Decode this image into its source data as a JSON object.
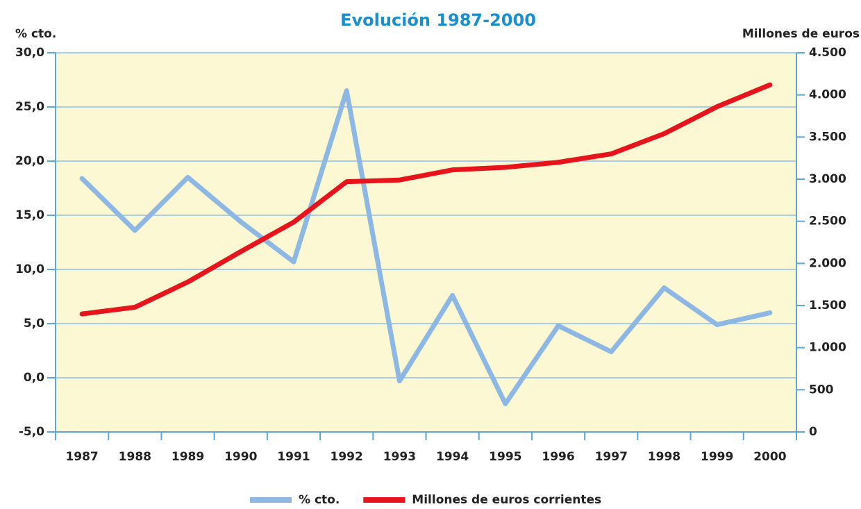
{
  "chart_data": {
    "type": "line",
    "title": "Evolución 1987-2000",
    "y_label": "% cto.",
    "y2_label": "Millones de euros",
    "categories": [
      "1987",
      "1988",
      "1989",
      "1990",
      "1991",
      "1992",
      "1993",
      "1994",
      "1995",
      "1996",
      "1997",
      "1998",
      "1999",
      "2000"
    ],
    "series": [
      {
        "name": "% cto.",
        "color": "#8cb8e3",
        "axis": "y",
        "values": [
          18.4,
          13.6,
          18.5,
          14.4,
          10.7,
          26.5,
          -0.3,
          7.6,
          -2.4,
          4.8,
          2.4,
          8.3,
          4.9,
          6.0
        ]
      },
      {
        "name": "Millones de euros corrientes",
        "color": "#e8141c",
        "axis": "y2",
        "values": [
          1400,
          1480,
          1780,
          2140,
          2490,
          2970,
          2990,
          3110,
          3140,
          3200,
          3300,
          3540,
          3860,
          4120
        ]
      }
    ],
    "ylim": [
      -5,
      30
    ],
    "yticks": [
      {
        "value": -5,
        "label": "-5,0"
      },
      {
        "value": 0,
        "label": "0,0"
      },
      {
        "value": 5,
        "label": "5,0"
      },
      {
        "value": 10,
        "label": "10,0"
      },
      {
        "value": 15,
        "label": "15,0"
      },
      {
        "value": 20,
        "label": "20,0"
      },
      {
        "value": 25,
        "label": "25,0"
      },
      {
        "value": 30,
        "label": "30,0"
      }
    ],
    "y2lim": [
      0,
      4500
    ],
    "y2ticks": [
      0,
      500,
      {
        "value": 1000,
        "label": "1.000"
      },
      {
        "value": 1500,
        "label": "1.500"
      },
      {
        "value": 2000,
        "label": "2.000"
      },
      {
        "value": 2500,
        "label": "2.500"
      },
      {
        "value": 3000,
        "label": "3.000"
      },
      {
        "value": 3500,
        "label": "3.500"
      },
      {
        "value": 4000,
        "label": "4.000"
      },
      {
        "value": 4500,
        "label": "4.500"
      }
    ],
    "grid": true,
    "legend": "bottom"
  }
}
